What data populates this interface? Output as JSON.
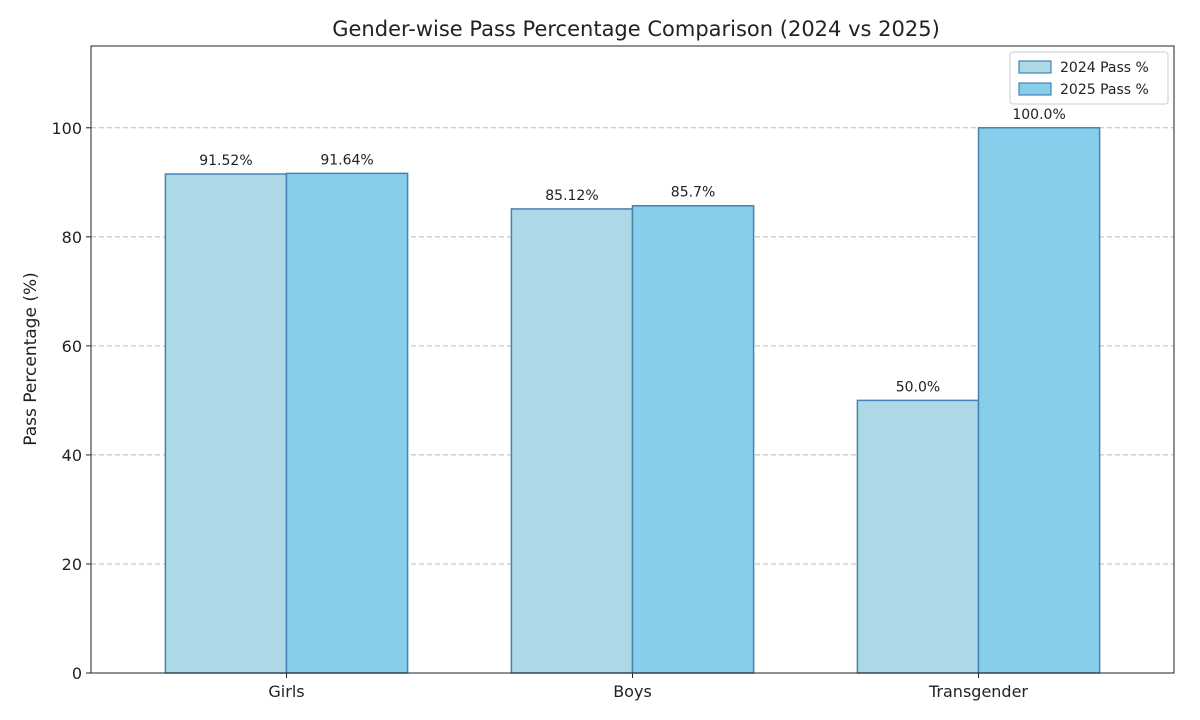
{
  "chart_data": {
    "type": "bar",
    "title": "Gender-wise Pass Percentage Comparison (2024 vs 2025)",
    "xlabel": "",
    "ylabel": "Pass Percentage (%)",
    "ylim": [
      0,
      115
    ],
    "yticks": [
      0,
      20,
      40,
      60,
      80,
      100
    ],
    "ytick_labels": [
      "0",
      "20",
      "40",
      "60",
      "80",
      "100"
    ],
    "categories": [
      "Girls",
      "Boys",
      "Transgender"
    ],
    "grid": "horizontal-dashed",
    "legend_position": "top-right",
    "series": [
      {
        "name": "2024 Pass %",
        "values": [
          91.52,
          85.12,
          50.0
        ],
        "labels": [
          "91.52%",
          "85.12%",
          "50.0%"
        ],
        "color": "#add8e6"
      },
      {
        "name": "2025 Pass %",
        "values": [
          91.64,
          85.7,
          100.0
        ],
        "labels": [
          "91.64%",
          "85.7%",
          "100.0%"
        ],
        "color": "#87ceeb"
      }
    ],
    "edge_color": "#4682b4",
    "grid_color": "#bbbbbb",
    "axis_color": "#222222"
  }
}
